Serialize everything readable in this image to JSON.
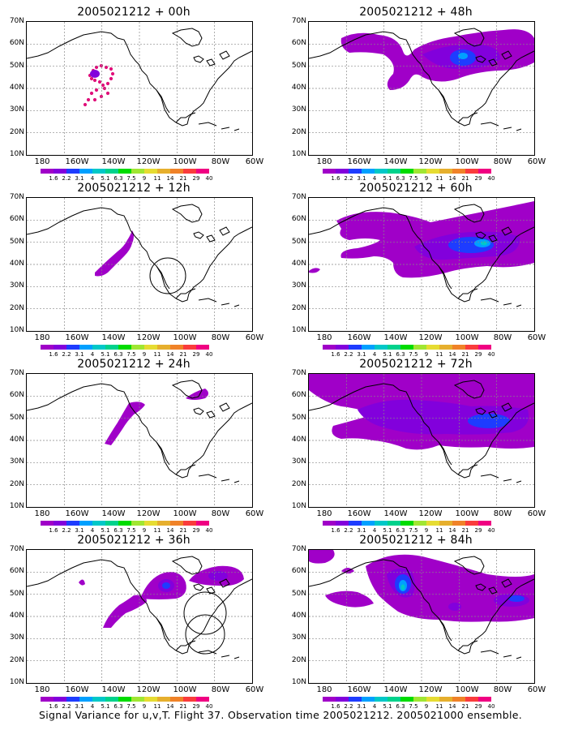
{
  "panels": [
    {
      "title": "2005021212 + 00h",
      "blobs": [
        "obs"
      ]
    },
    {
      "title": "2005021212 + 48h",
      "blobs": [
        "h48"
      ]
    },
    {
      "title": "2005021212 + 12h",
      "blobs": [
        "h12"
      ]
    },
    {
      "title": "2005021212 + 60h",
      "blobs": [
        "h60"
      ]
    },
    {
      "title": "2005021212 + 24h",
      "blobs": [
        "h24"
      ]
    },
    {
      "title": "2005021212 + 72h",
      "blobs": [
        "h72"
      ]
    },
    {
      "title": "2005021212 + 36h",
      "blobs": [
        "h36"
      ]
    },
    {
      "title": "2005021212 + 84h",
      "blobs": [
        "h84"
      ]
    }
  ],
  "lat_labels": [
    "70N",
    "60N",
    "50N",
    "40N",
    "30N",
    "20N",
    "10N"
  ],
  "lon_labels": [
    "180",
    "160W",
    "140W",
    "120W",
    "100W",
    "80W",
    "60W"
  ],
  "colorbar": {
    "values": [
      "1.6",
      "2.2",
      "3.1",
      "4",
      "5.1",
      "6.3",
      "7.5",
      "9",
      "11",
      "14",
      "21",
      "29",
      "40"
    ],
    "colors": [
      "#a000c8",
      "#8200dc",
      "#1e3cff",
      "#00a0ff",
      "#00c8c8",
      "#00d28c",
      "#00dc00",
      "#a0e632",
      "#e6dc32",
      "#e6af2d",
      "#f08228",
      "#fa3c3c",
      "#f00082"
    ]
  },
  "caption": "Signal Variance for u,v,T. Flight 37. Observation time 2005021212. 2005021000 ensemble."
}
